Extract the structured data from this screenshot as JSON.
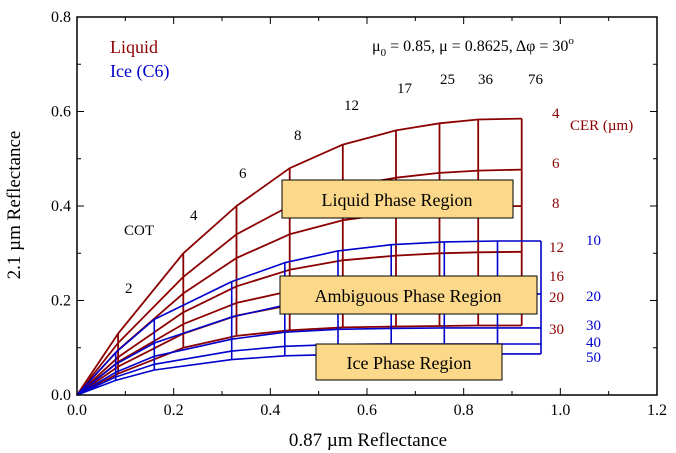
{
  "chart_data": {
    "type": "line",
    "title": "μ0 = 0.85, μ = 0.8625, Δφ = 30°",
    "xlabel": "0.87 µm Reflectance",
    "ylabel": "2.1 µm Reflectance",
    "xlim": [
      0.0,
      1.2
    ],
    "ylim": [
      0.0,
      0.8
    ],
    "xticks": [
      "0.0",
      "0.2",
      "0.4",
      "0.6",
      "0.8",
      "1.0",
      "1.2"
    ],
    "yticks": [
      "0.0",
      "0.2",
      "0.4",
      "0.6",
      "0.8"
    ],
    "grid": false,
    "legend": {
      "position": "top-left",
      "entries": [
        {
          "label": "Liquid",
          "color": "#8b0000"
        },
        {
          "label": "Ice (C6)",
          "color": "#0000cc"
        }
      ]
    },
    "title_parts": {
      "mu0_label": "μ",
      "mu0_sub": "0",
      "mu0_value": " = 0.85, μ = 0.8625, Δφ = 30",
      "degree": "o"
    },
    "cot_axis_label": "COT",
    "cer_axis_label": "CER (µm)",
    "cot_values": [
      "2",
      "4",
      "6",
      "8",
      "12",
      "17",
      "25",
      "36",
      "76"
    ],
    "liquid_cer_labels": [
      "4",
      "6",
      "8",
      "12",
      "16",
      "20",
      "30"
    ],
    "ice_cer_labels": [
      "10",
      "20",
      "30",
      "40",
      "50"
    ],
    "regions": [
      {
        "label": "Liquid Phase Region"
      },
      {
        "label": "Ambiguous Phase Region"
      },
      {
        "label": "Ice Phase Region"
      }
    ],
    "series": [
      {
        "phase": "Liquid",
        "cer": "4",
        "x": [
          0,
          0.085,
          0.22,
          0.33,
          0.44,
          0.55,
          0.66,
          0.75,
          0.83,
          0.92
        ],
        "y": [
          0,
          0.13,
          0.3,
          0.4,
          0.48,
          0.53,
          0.56,
          0.575,
          0.583,
          0.585
        ]
      },
      {
        "phase": "Liquid",
        "cer": "6",
        "x": [
          0,
          0.085,
          0.22,
          0.33,
          0.44,
          0.55,
          0.66,
          0.75,
          0.83,
          0.92
        ],
        "y": [
          0,
          0.11,
          0.25,
          0.34,
          0.4,
          0.44,
          0.46,
          0.47,
          0.475,
          0.477
        ]
      },
      {
        "phase": "Liquid",
        "cer": "8",
        "x": [
          0,
          0.085,
          0.22,
          0.33,
          0.44,
          0.55,
          0.66,
          0.75,
          0.83,
          0.92
        ],
        "y": [
          0,
          0.095,
          0.215,
          0.29,
          0.34,
          0.37,
          0.385,
          0.395,
          0.398,
          0.4
        ]
      },
      {
        "phase": "Liquid",
        "cer": "12",
        "x": [
          0,
          0.085,
          0.22,
          0.33,
          0.44,
          0.55,
          0.66,
          0.75,
          0.83,
          0.92
        ],
        "y": [
          0,
          0.08,
          0.175,
          0.23,
          0.265,
          0.285,
          0.295,
          0.3,
          0.302,
          0.303
        ]
      },
      {
        "phase": "Liquid",
        "cer": "16",
        "x": [
          0,
          0.085,
          0.22,
          0.33,
          0.44,
          0.55,
          0.66,
          0.75,
          0.83,
          0.92
        ],
        "y": [
          0,
          0.07,
          0.15,
          0.195,
          0.22,
          0.235,
          0.242,
          0.246,
          0.248,
          0.249
        ]
      },
      {
        "phase": "Liquid",
        "cer": "20",
        "x": [
          0,
          0.085,
          0.22,
          0.33,
          0.44,
          0.55,
          0.66,
          0.75,
          0.83,
          0.92
        ],
        "y": [
          0,
          0.06,
          0.13,
          0.168,
          0.19,
          0.202,
          0.207,
          0.21,
          0.212,
          0.212
        ]
      },
      {
        "phase": "Liquid",
        "cer": "30",
        "x": [
          0,
          0.085,
          0.22,
          0.33,
          0.44,
          0.55,
          0.66,
          0.75,
          0.83,
          0.92
        ],
        "y": [
          0,
          0.045,
          0.1,
          0.125,
          0.137,
          0.143,
          0.145,
          0.146,
          0.147,
          0.147
        ]
      },
      {
        "phase": "Ice",
        "cer": "10",
        "x": [
          0,
          0.08,
          0.16,
          0.32,
          0.43,
          0.54,
          0.65,
          0.76,
          0.87,
          0.96
        ],
        "y": [
          0,
          0.09,
          0.16,
          0.24,
          0.28,
          0.305,
          0.318,
          0.324,
          0.326,
          0.326
        ]
      },
      {
        "phase": "Ice",
        "cer": "20",
        "x": [
          0,
          0.08,
          0.16,
          0.32,
          0.43,
          0.54,
          0.65,
          0.76,
          0.87,
          0.96
        ],
        "y": [
          0,
          0.065,
          0.11,
          0.165,
          0.19,
          0.205,
          0.211,
          0.213,
          0.214,
          0.214
        ]
      },
      {
        "phase": "Ice",
        "cer": "30",
        "x": [
          0,
          0.08,
          0.16,
          0.32,
          0.43,
          0.54,
          0.65,
          0.76,
          0.87,
          0.96
        ],
        "y": [
          0,
          0.048,
          0.082,
          0.118,
          0.133,
          0.139,
          0.141,
          0.142,
          0.142,
          0.142
        ]
      },
      {
        "phase": "Ice",
        "cer": "40",
        "x": [
          0,
          0.08,
          0.16,
          0.32,
          0.43,
          0.54,
          0.65,
          0.76,
          0.87,
          0.96
        ],
        "y": [
          0,
          0.038,
          0.065,
          0.093,
          0.103,
          0.107,
          0.108,
          0.108,
          0.108,
          0.108
        ]
      },
      {
        "phase": "Ice",
        "cer": "50",
        "x": [
          0,
          0.08,
          0.16,
          0.32,
          0.43,
          0.54,
          0.65,
          0.76,
          0.87,
          0.96
        ],
        "y": [
          0,
          0.031,
          0.053,
          0.075,
          0.083,
          0.086,
          0.087,
          0.087,
          0.087,
          0.087
        ]
      }
    ]
  }
}
